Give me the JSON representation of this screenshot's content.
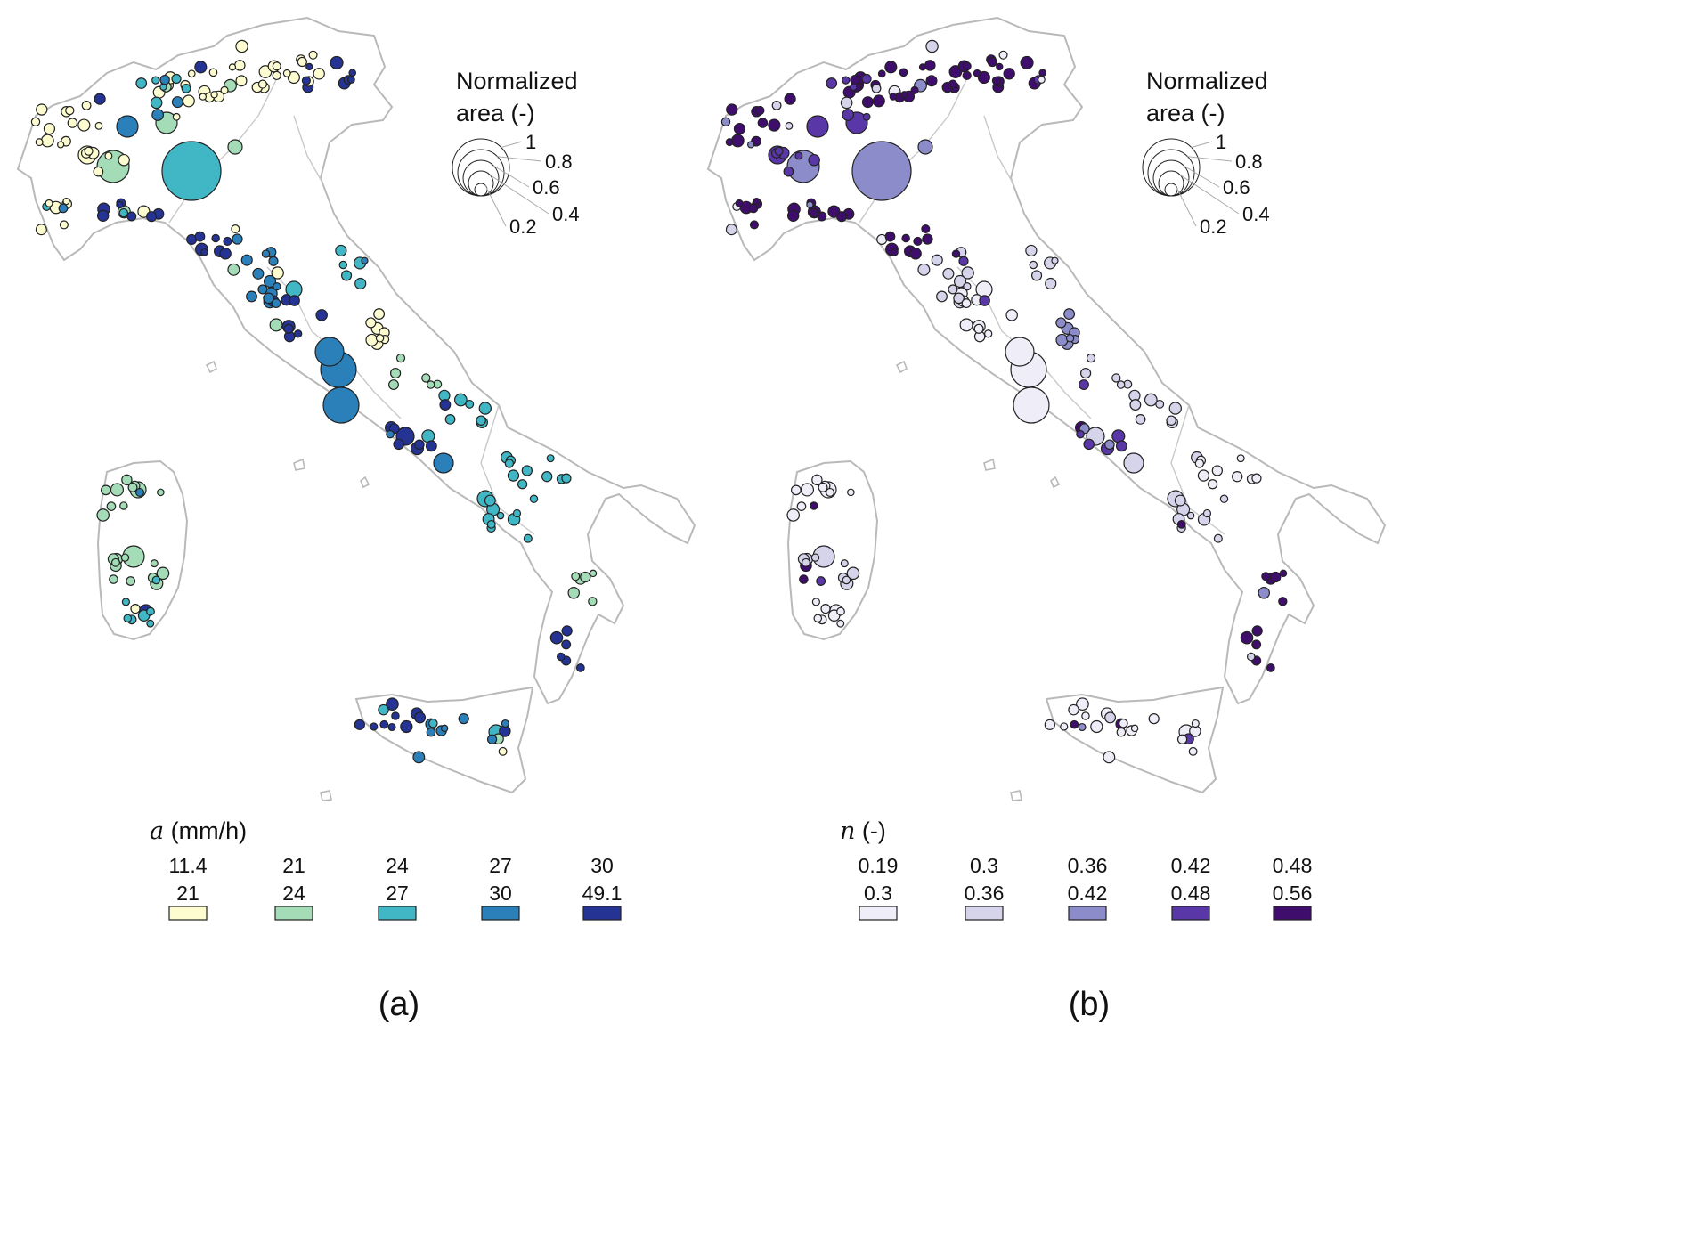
{
  "panels": [
    {
      "id": "a",
      "caption": "(a)",
      "legend_title_var": "a",
      "legend_title_unit": " (mm/h)",
      "area_legend": {
        "title_line1": "Normalized",
        "title_line2": "area (-)",
        "values": [
          "1",
          "0.8",
          "0.6",
          "0.4",
          "0.2"
        ]
      },
      "classes": [
        {
          "low": "11.4",
          "high": "21",
          "color": "#fdfcd0"
        },
        {
          "low": "21",
          "high": "24",
          "color": "#a3dcb7"
        },
        {
          "low": "24",
          "high": "27",
          "color": "#41b6c4"
        },
        {
          "low": "27",
          "high": "30",
          "color": "#2c80ba"
        },
        {
          "low": "30",
          "high": "49.1",
          "color": "#253494"
        }
      ]
    },
    {
      "id": "b",
      "caption": "(b)",
      "legend_title_var": "n",
      "legend_title_unit": " (-)",
      "area_legend": {
        "title_line1": "Normalized",
        "title_line2": "area (-)",
        "values": [
          "1",
          "0.8",
          "0.6",
          "0.4",
          "0.2"
        ]
      },
      "classes": [
        {
          "low": "0.19",
          "high": "0.3",
          "color": "#efedf7"
        },
        {
          "low": "0.3",
          "high": "0.36",
          "color": "#d5d4ea"
        },
        {
          "low": "0.36",
          "high": "0.42",
          "color": "#8c8ccb"
        },
        {
          "low": "0.42",
          "high": "0.48",
          "color": "#5a37a6"
        },
        {
          "low": "0.48",
          "high": "0.56",
          "color": "#3f0d6c"
        }
      ]
    }
  ],
  "style": {
    "outline_color": "#b9b9b9",
    "marker_edge": "#222222"
  }
}
